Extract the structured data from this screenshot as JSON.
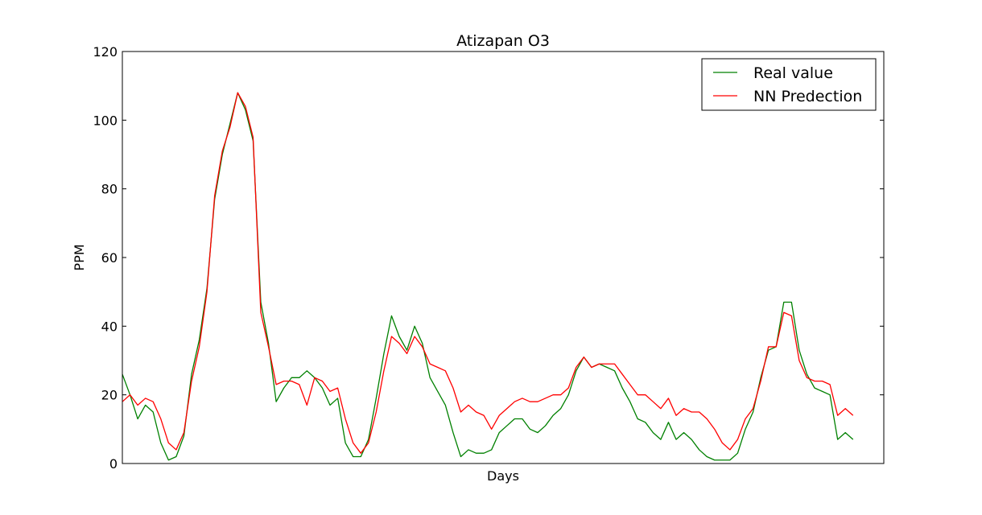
{
  "chart_data": {
    "type": "line",
    "title": "Atizapan O3",
    "xlabel": "Days",
    "ylabel": "PPM",
    "ylim": [
      0,
      120
    ],
    "yticks": [
      "0",
      "20",
      "40",
      "60",
      "80",
      "100",
      "120"
    ],
    "xlim": [
      0,
      99
    ],
    "x_tick_labels": false,
    "grid": false,
    "legend_position": "top-right",
    "series": [
      {
        "name": "Real value",
        "color": "#008000",
        "values": [
          26,
          20,
          13,
          17,
          15,
          6,
          1,
          2,
          8,
          26,
          36,
          51,
          77,
          90,
          99,
          108,
          103,
          94,
          47,
          35,
          18,
          22,
          25,
          25,
          27,
          25,
          22,
          17,
          19,
          6,
          2,
          2,
          7,
          19,
          32,
          43,
          37,
          33,
          40,
          35,
          25,
          21,
          17,
          9,
          2,
          4,
          3,
          3,
          4,
          9,
          11,
          13,
          13,
          10,
          9,
          11,
          14,
          16,
          20,
          27,
          31,
          28,
          29,
          28,
          27,
          22,
          18,
          13,
          12,
          9,
          7,
          12,
          7,
          9,
          7,
          4,
          2,
          1,
          1,
          1,
          3,
          10,
          15,
          25,
          33,
          34,
          47,
          47,
          33,
          26,
          22,
          21,
          20,
          7,
          9,
          7
        ]
      },
      {
        "name": "NN Predection",
        "color": "#ff0000",
        "values": [
          18,
          20,
          17,
          19,
          18,
          13,
          6,
          4,
          9,
          24,
          34,
          50,
          78,
          91,
          98,
          108,
          104,
          95,
          44,
          34,
          23,
          24,
          24,
          23,
          17,
          25,
          24,
          21,
          22,
          13,
          6,
          3,
          6,
          15,
          27,
          37,
          35,
          32,
          37,
          34,
          29,
          28,
          27,
          22,
          15,
          17,
          15,
          14,
          10,
          14,
          16,
          18,
          19,
          18,
          18,
          19,
          20,
          20,
          22,
          28,
          31,
          28,
          29,
          29,
          29,
          26,
          23,
          20,
          20,
          18,
          16,
          19,
          14,
          16,
          15,
          15,
          13,
          10,
          6,
          4,
          7,
          13,
          16,
          24,
          34,
          34,
          44,
          43,
          30,
          25,
          24,
          24,
          23,
          14,
          16,
          14
        ]
      }
    ]
  }
}
